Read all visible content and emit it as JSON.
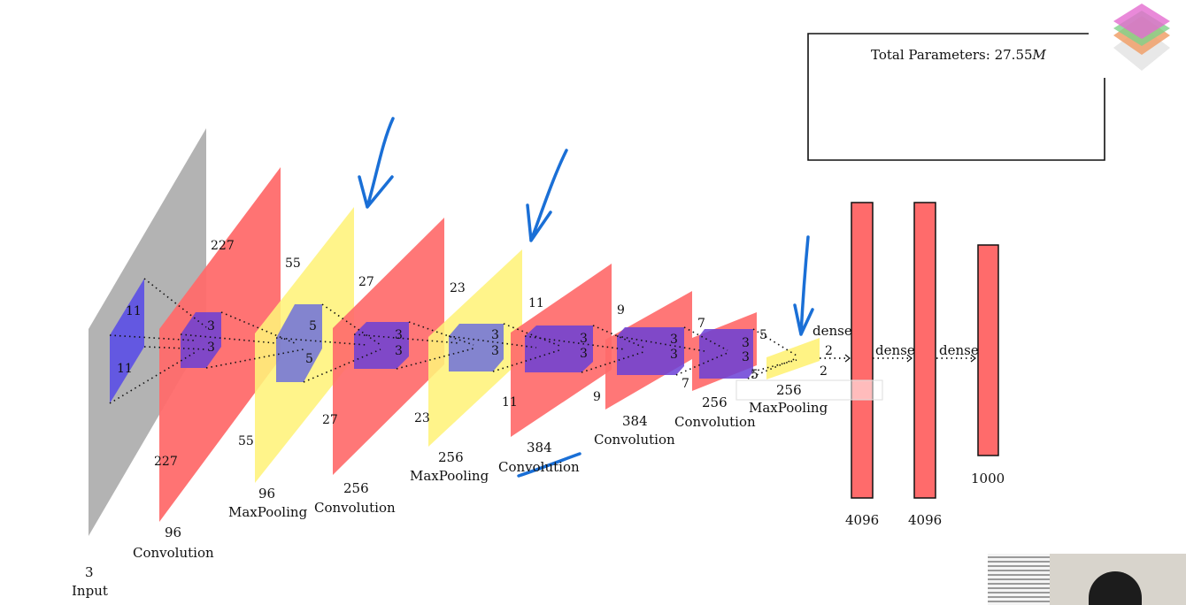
{
  "params_box": {
    "label": "Total Parameters:",
    "value": "27.55",
    "unit": "M"
  },
  "input": {
    "depth": "3",
    "name": "Input",
    "kernel_h": "11",
    "kernel_w": "11"
  },
  "conv1": {
    "depth": "96",
    "name": "Convolution",
    "h": "227",
    "w": "227",
    "kernel_h": "3",
    "kernel_w": "3"
  },
  "pool1": {
    "depth": "96",
    "name": "MaxPooling",
    "h": "55",
    "w": "55",
    "kernel_h": "5",
    "kernel_w": "5"
  },
  "conv2": {
    "depth": "256",
    "name": "Convolution",
    "h": "27",
    "w": "27",
    "kernel_h": "3",
    "kernel_w": "3"
  },
  "pool2": {
    "depth": "256",
    "name": "MaxPooling",
    "h": "23",
    "w": "23",
    "kernel_h": "3",
    "kernel_w": "3"
  },
  "conv3": {
    "depth": "384",
    "name": "Convolution",
    "h": "11",
    "w": "11",
    "kernel_h": "3",
    "kernel_w": "3"
  },
  "conv4": {
    "depth": "384",
    "name": "Convolution",
    "h": "9",
    "w": "9",
    "kernel_h": "3",
    "kernel_w": "3"
  },
  "conv5": {
    "depth": "256",
    "name": "Convolution",
    "h": "7",
    "w": "7",
    "kernel_h": "3",
    "kernel_w": "3"
  },
  "pool3": {
    "depth": "256",
    "name": "MaxPooling",
    "h": "5",
    "w": "5"
  },
  "flat": {
    "h": "2",
    "w": "2"
  },
  "dense_label": "dense",
  "fc1": {
    "units": "4096"
  },
  "fc2": {
    "units": "4096"
  },
  "fc3": {
    "units": "1000"
  },
  "colors": {
    "input": "#b3b3b3",
    "conv": "#ff6b6b",
    "pool": "#fff27a",
    "kernel": "#5a4ee6",
    "ink": "#1a6fd6"
  }
}
